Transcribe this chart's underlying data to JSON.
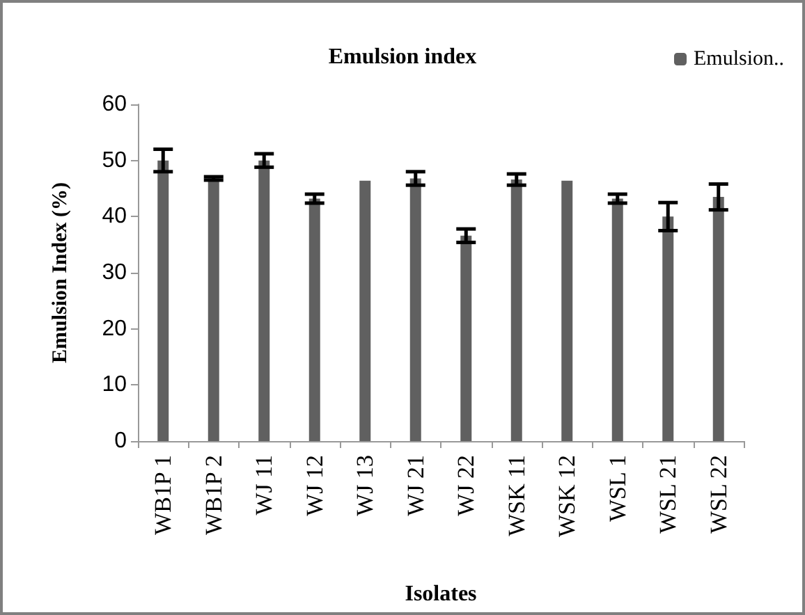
{
  "chart_data": {
    "type": "bar",
    "title": "Emulsion index",
    "xlabel": "Isolates",
    "ylabel": "Emulsion Index (%)",
    "categories": [
      "WB1P 1",
      "WB1P 2",
      "WJ 11",
      "WJ 12",
      "WJ 13",
      "WJ 21",
      "WJ 22",
      "WSK 11",
      "WSK 12",
      "WSL 1",
      "WSL 21",
      "WSL 22"
    ],
    "series": [
      {
        "name": "Emulsion..",
        "color": "#606060",
        "values": [
          50,
          46.8,
          50,
          43.2,
          46.4,
          46.8,
          36.6,
          46.6,
          46.4,
          43.2,
          40,
          43.5
        ],
        "errors": [
          2,
          0.3,
          1.2,
          0.8,
          null,
          1.2,
          1.2,
          1,
          null,
          0.8,
          2.5,
          2.3
        ]
      }
    ],
    "ylim": [
      0,
      60
    ],
    "yticks": [
      0,
      10,
      20,
      30,
      40,
      50,
      60
    ],
    "grid": false,
    "legend": "top right"
  }
}
